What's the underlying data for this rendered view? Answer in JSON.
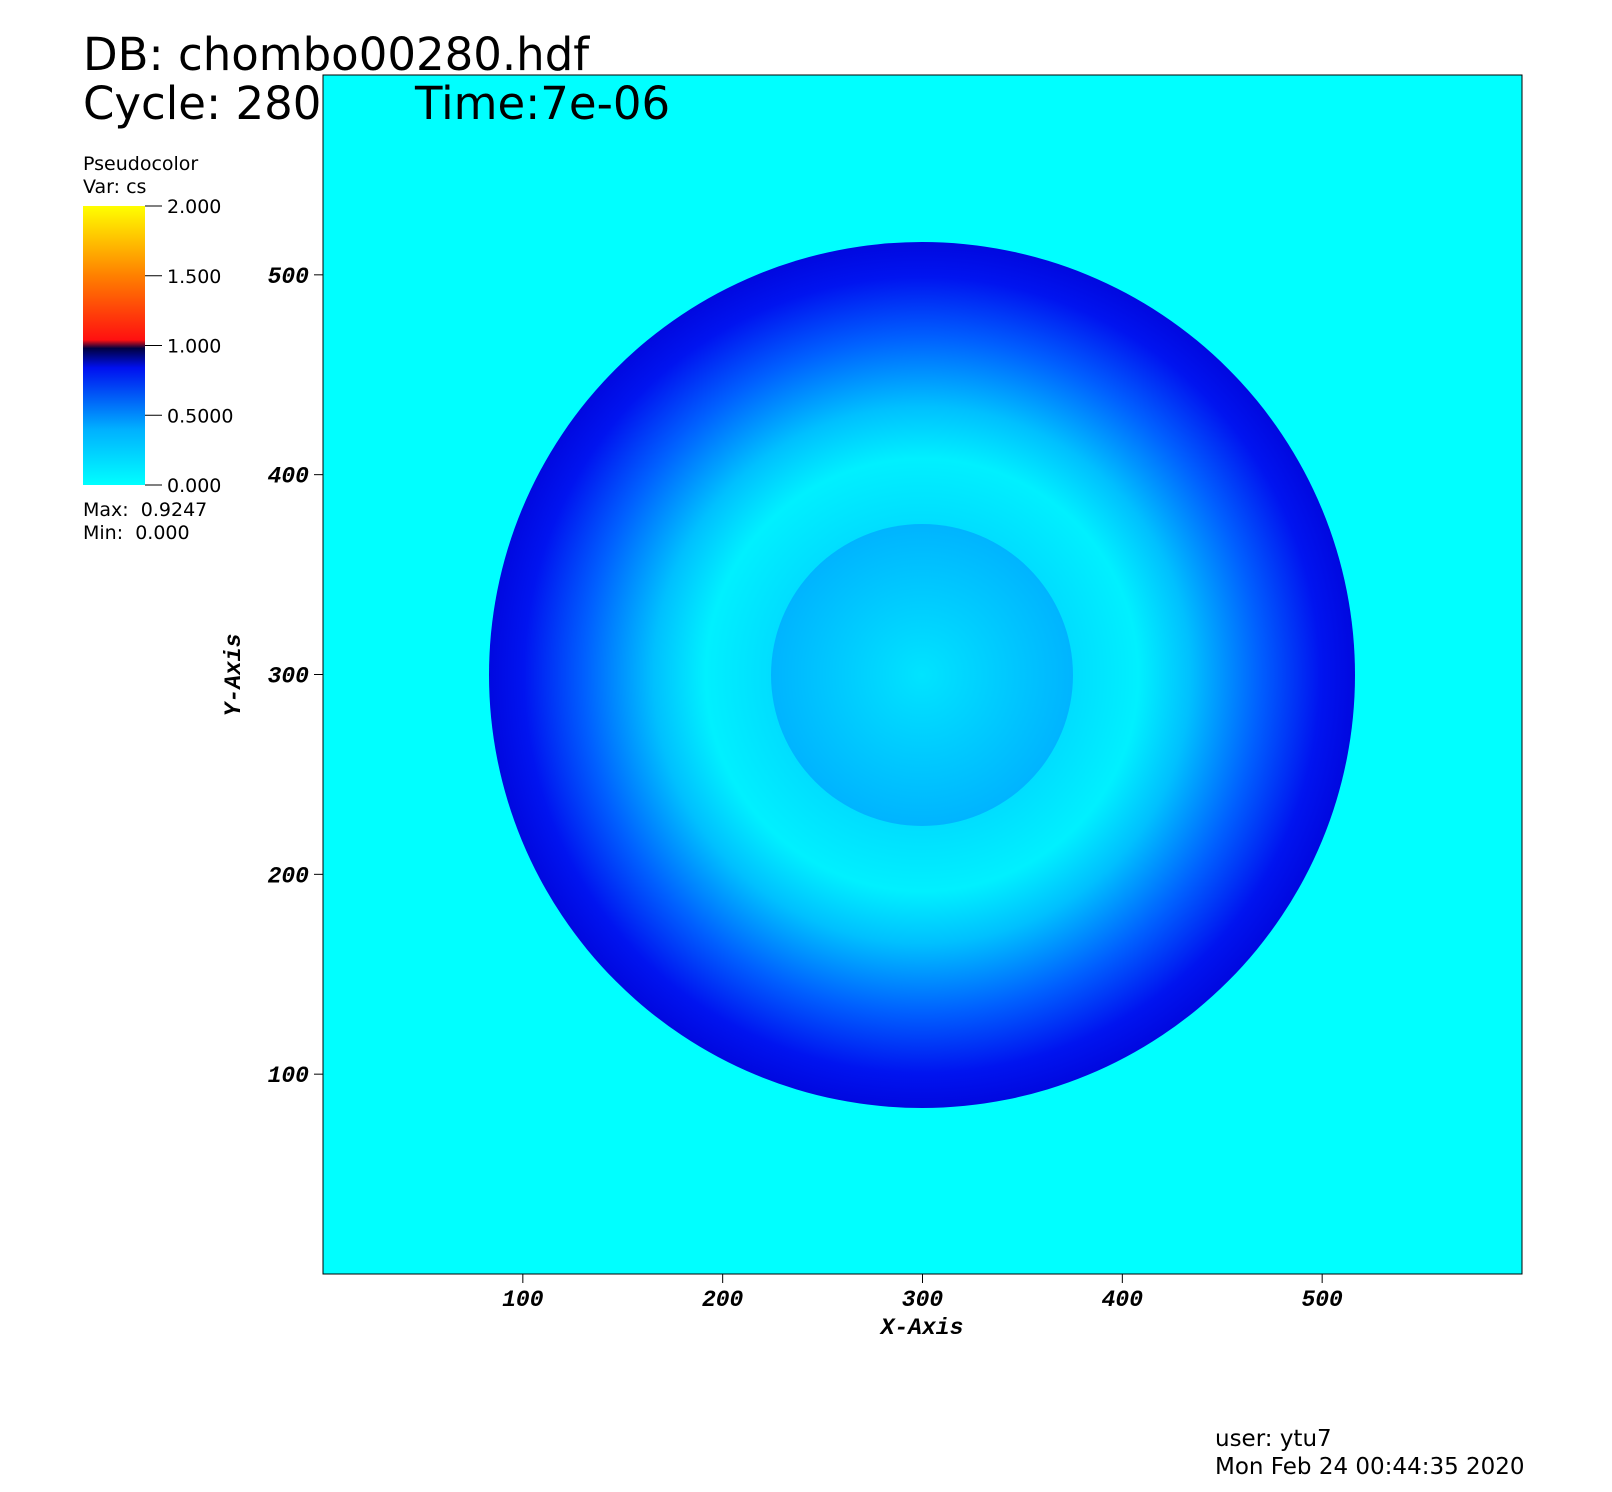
{
  "chart_data": {
    "type": "pseudocolor",
    "title": "DB: chombo00280.hdf",
    "cycle": "Cycle: 280",
    "time": "Time:7e-06",
    "x_label": "X-Axis",
    "y_label": "Y-Axis",
    "xlim": [
      0,
      600
    ],
    "ylim": [
      0,
      600
    ],
    "xticks": [
      100,
      200,
      300,
      400,
      500
    ],
    "yticks": [
      100,
      200,
      300,
      400,
      500
    ],
    "colorbar": {
      "title": "Pseudocolor",
      "var": "Var: cs",
      "lim": [
        0,
        2
      ],
      "ticks": [
        {
          "value": 0,
          "label": "0.000"
        },
        {
          "value": 0.5,
          "label": "0.5000"
        },
        {
          "value": 1,
          "label": "1.000"
        },
        {
          "value": 1.5,
          "label": "1.500"
        },
        {
          "value": 2,
          "label": "2.000"
        }
      ],
      "max_text": "Max:  0.9247",
      "min_text": "Min:  0.000"
    },
    "user": "user: ytu7",
    "date": "Mon Feb 24 00:44:35 2020"
  }
}
